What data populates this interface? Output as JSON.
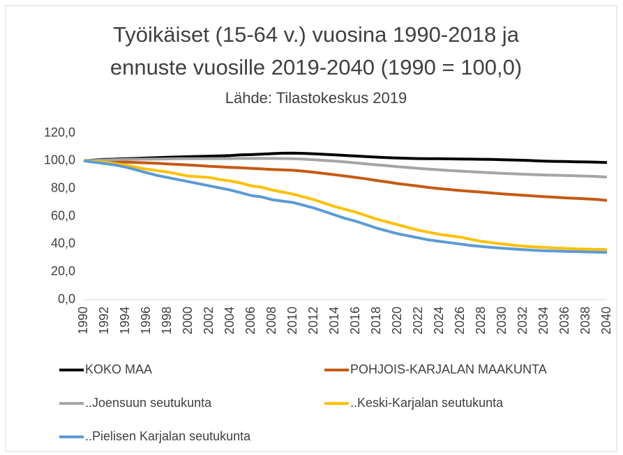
{
  "chart_data": {
    "type": "line",
    "title": [
      "Työikäiset (15-64 v.) vuosina 1990-2018 ja",
      "ennuste vuosille 2019-2040 (1990 = 100,0)"
    ],
    "subtitle": "Lähde: Tilastokeskus 2019",
    "categories": [
      "1990",
      null,
      "1992",
      null,
      "1994",
      null,
      "1996",
      null,
      "1998",
      null,
      "2000",
      null,
      "2002",
      null,
      "2004",
      null,
      "2006",
      null,
      "2008",
      null,
      "2010",
      null,
      "2012",
      null,
      "2014",
      null,
      "2016",
      null,
      "2018",
      null,
      "2020",
      null,
      "2022",
      null,
      "2024",
      null,
      "2026",
      null,
      "2028",
      null,
      "2030",
      null,
      "2032",
      null,
      "2034",
      null,
      "2036",
      null,
      "2038",
      null,
      "2040"
    ],
    "ylim": [
      0,
      120
    ],
    "yticks": [
      {
        "value": 0,
        "label": "0,0"
      },
      {
        "value": 20,
        "label": "20,0"
      },
      {
        "value": 40,
        "label": "40,0"
      },
      {
        "value": 60,
        "label": "60,0"
      },
      {
        "value": 80,
        "label": "80,0"
      },
      {
        "value": 100,
        "label": "100,0"
      },
      {
        "value": 120,
        "label": "120,0"
      }
    ],
    "grid": false,
    "legend": "bottom",
    "series": [
      {
        "name": "KOKO MAA",
        "color": "#000000",
        "values": [
          100,
          100.5,
          101,
          101.2,
          101.5,
          101.7,
          102,
          102.3,
          102.6,
          102.8,
          103,
          103.2,
          103.4,
          103.6,
          103.8,
          104.3,
          104.5,
          104.8,
          105.2,
          105.5,
          105.6,
          105.4,
          105.1,
          104.7,
          104.3,
          103.9,
          103.5,
          103.1,
          102.7,
          102.3,
          102.0,
          101.8,
          101.6,
          101.5,
          101.5,
          101.4,
          101.3,
          101.2,
          101.1,
          101.0,
          100.8,
          100.6,
          100.4,
          100.1,
          99.8,
          99.6,
          99.5,
          99.3,
          99.2,
          99.0,
          98.8
        ]
      },
      {
        "name": "POHJOIS-KARJALAN MAAKUNTA",
        "color": "#c55a11",
        "values": [
          100,
          99.8,
          99.6,
          99.4,
          99.1,
          98.8,
          98.5,
          98.2,
          97.8,
          97.4,
          97.0,
          96.6,
          96.1,
          95.7,
          95.3,
          95.0,
          94.6,
          94.2,
          93.8,
          93.5,
          93.2,
          92.6,
          91.8,
          90.9,
          90.0,
          89.0,
          88.0,
          87.0,
          85.8,
          84.8,
          83.6,
          82.7,
          81.8,
          80.8,
          80.0,
          79.3,
          78.6,
          78.0,
          77.4,
          76.8,
          76.2,
          75.7,
          75.2,
          74.7,
          74.2,
          73.8,
          73.3,
          73.0,
          72.6,
          72.2,
          71.5
        ]
      },
      {
        "name": "..Joensuun seutukunta",
        "color": "#a5a5a5",
        "values": [
          100,
          100.3,
          100.6,
          100.8,
          101,
          101.1,
          101.2,
          101.3,
          101.4,
          101.5,
          101.5,
          101.5,
          101.6,
          101.6,
          101.6,
          101.7,
          101.7,
          101.7,
          101.7,
          101.6,
          101.5,
          101.2,
          100.8,
          100.3,
          99.8,
          99.2,
          98.5,
          97.8,
          97.1,
          96.5,
          95.8,
          95.2,
          94.6,
          94.0,
          93.5,
          93.0,
          92.6,
          92.2,
          91.8,
          91.4,
          91.0,
          90.7,
          90.4,
          90.1,
          89.8,
          89.6,
          89.4,
          89.2,
          89.0,
          88.7,
          88.3
        ]
      },
      {
        "name": "..Keski-Karjalan seutukunta",
        "color": "#ffc000",
        "values": [
          100,
          99.5,
          99,
          98,
          97,
          95.5,
          94,
          93,
          92,
          90.5,
          89,
          88.5,
          88,
          86.5,
          85.5,
          84,
          82,
          81,
          79,
          77.5,
          76,
          74,
          72,
          69.5,
          67,
          65,
          63,
          60.5,
          58,
          56,
          54,
          52,
          50,
          48.5,
          47,
          46,
          45,
          43.5,
          42,
          41,
          40,
          39.2,
          38.5,
          38,
          37.6,
          37.2,
          36.9,
          36.6,
          36.4,
          36.2,
          36.0
        ]
      },
      {
        "name": "..Pielisen Karjalan seutukunta",
        "color": "#5b9bd5",
        "values": [
          100,
          99,
          98,
          97,
          95.5,
          93.5,
          91.5,
          89.5,
          88,
          86.5,
          85,
          83.5,
          82,
          80.5,
          79,
          77,
          75,
          74,
          72,
          71,
          70,
          68,
          66,
          63.5,
          61,
          58.5,
          56.5,
          54,
          51.5,
          49.5,
          47.5,
          46,
          44.5,
          43,
          42,
          41,
          40,
          39,
          38.3,
          37.6,
          37,
          36.5,
          36,
          35.6,
          35.2,
          35,
          34.8,
          34.6,
          34.4,
          34.2,
          34.0
        ]
      }
    ]
  }
}
